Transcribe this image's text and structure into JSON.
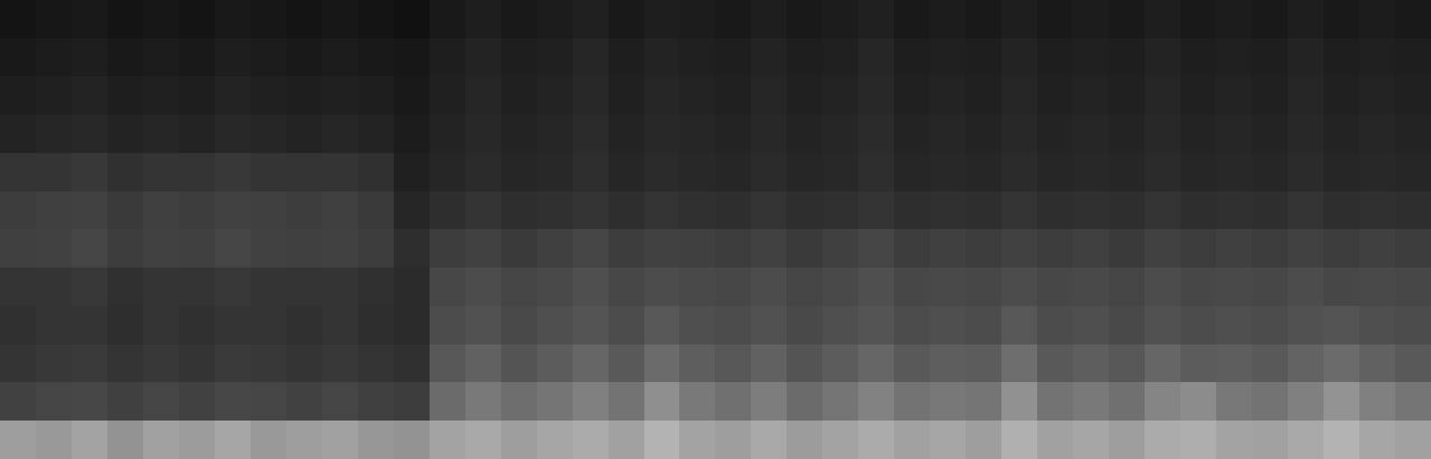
{
  "chart_data": {
    "type": "heatmap",
    "color": "gray",
    "tick_labels": false,
    "color_range": [
      0,
      1
    ],
    "cells": [
      [
        0.08,
        0.09,
        0.1,
        0.08,
        0.09,
        0.08,
        0.1,
        0.09,
        0.08,
        0.09,
        0.08,
        0.07,
        0.1,
        0.12,
        0.1,
        0.11,
        0.13,
        0.1,
        0.12,
        0.11,
        0.1,
        0.12,
        0.1,
        0.11,
        0.13,
        0.1,
        0.11,
        0.1,
        0.12,
        0.1,
        0.11,
        0.1,
        0.12,
        0.1,
        0.11,
        0.1,
        0.12,
        0.1,
        0.11,
        0.1
      ],
      [
        0.1,
        0.11,
        0.12,
        0.1,
        0.11,
        0.1,
        0.12,
        0.11,
        0.1,
        0.11,
        0.1,
        0.09,
        0.12,
        0.14,
        0.12,
        0.13,
        0.15,
        0.12,
        0.14,
        0.13,
        0.12,
        0.14,
        0.12,
        0.13,
        0.15,
        0.12,
        0.13,
        0.12,
        0.14,
        0.12,
        0.13,
        0.12,
        0.14,
        0.12,
        0.13,
        0.12,
        0.14,
        0.12,
        0.13,
        0.12
      ],
      [
        0.12,
        0.13,
        0.14,
        0.12,
        0.13,
        0.12,
        0.14,
        0.13,
        0.12,
        0.13,
        0.12,
        0.1,
        0.13,
        0.15,
        0.13,
        0.14,
        0.16,
        0.13,
        0.15,
        0.14,
        0.13,
        0.15,
        0.13,
        0.14,
        0.16,
        0.13,
        0.14,
        0.13,
        0.15,
        0.13,
        0.14,
        0.13,
        0.15,
        0.13,
        0.14,
        0.13,
        0.15,
        0.13,
        0.14,
        0.13
      ],
      [
        0.14,
        0.15,
        0.16,
        0.14,
        0.15,
        0.14,
        0.16,
        0.15,
        0.14,
        0.15,
        0.14,
        0.11,
        0.14,
        0.16,
        0.14,
        0.15,
        0.17,
        0.14,
        0.16,
        0.15,
        0.14,
        0.16,
        0.14,
        0.15,
        0.17,
        0.14,
        0.15,
        0.14,
        0.16,
        0.14,
        0.15,
        0.14,
        0.16,
        0.14,
        0.15,
        0.14,
        0.16,
        0.14,
        0.15,
        0.14
      ],
      [
        0.2,
        0.21,
        0.22,
        0.19,
        0.21,
        0.2,
        0.22,
        0.21,
        0.2,
        0.21,
        0.19,
        0.13,
        0.15,
        0.17,
        0.15,
        0.16,
        0.18,
        0.15,
        0.17,
        0.16,
        0.15,
        0.17,
        0.15,
        0.16,
        0.18,
        0.15,
        0.16,
        0.15,
        0.17,
        0.15,
        0.16,
        0.15,
        0.17,
        0.15,
        0.16,
        0.15,
        0.17,
        0.15,
        0.16,
        0.15
      ],
      [
        0.24,
        0.25,
        0.26,
        0.23,
        0.25,
        0.24,
        0.26,
        0.25,
        0.24,
        0.25,
        0.23,
        0.15,
        0.18,
        0.2,
        0.18,
        0.19,
        0.21,
        0.18,
        0.2,
        0.19,
        0.18,
        0.2,
        0.18,
        0.19,
        0.21,
        0.18,
        0.19,
        0.18,
        0.2,
        0.18,
        0.19,
        0.18,
        0.2,
        0.18,
        0.19,
        0.18,
        0.2,
        0.18,
        0.19,
        0.18
      ],
      [
        0.25,
        0.26,
        0.27,
        0.24,
        0.26,
        0.25,
        0.27,
        0.26,
        0.25,
        0.26,
        0.24,
        0.18,
        0.24,
        0.26,
        0.23,
        0.25,
        0.27,
        0.24,
        0.26,
        0.25,
        0.24,
        0.26,
        0.23,
        0.25,
        0.27,
        0.24,
        0.25,
        0.24,
        0.26,
        0.24,
        0.25,
        0.23,
        0.26,
        0.24,
        0.25,
        0.24,
        0.26,
        0.24,
        0.25,
        0.24
      ],
      [
        0.2,
        0.21,
        0.22,
        0.19,
        0.21,
        0.2,
        0.22,
        0.21,
        0.2,
        0.21,
        0.19,
        0.17,
        0.28,
        0.3,
        0.27,
        0.29,
        0.31,
        0.28,
        0.3,
        0.29,
        0.28,
        0.3,
        0.27,
        0.29,
        0.31,
        0.28,
        0.29,
        0.28,
        0.3,
        0.28,
        0.29,
        0.27,
        0.3,
        0.28,
        0.29,
        0.28,
        0.3,
        0.28,
        0.29,
        0.28
      ],
      [
        0.19,
        0.2,
        0.21,
        0.18,
        0.2,
        0.19,
        0.21,
        0.2,
        0.19,
        0.2,
        0.18,
        0.17,
        0.3,
        0.32,
        0.29,
        0.31,
        0.33,
        0.3,
        0.34,
        0.31,
        0.3,
        0.32,
        0.29,
        0.31,
        0.33,
        0.3,
        0.31,
        0.3,
        0.34,
        0.3,
        0.31,
        0.29,
        0.32,
        0.3,
        0.31,
        0.3,
        0.32,
        0.33,
        0.31,
        0.3
      ],
      [
        0.21,
        0.22,
        0.23,
        0.2,
        0.22,
        0.21,
        0.23,
        0.22,
        0.21,
        0.22,
        0.2,
        0.19,
        0.34,
        0.38,
        0.33,
        0.36,
        0.4,
        0.35,
        0.42,
        0.37,
        0.34,
        0.38,
        0.33,
        0.36,
        0.4,
        0.35,
        0.37,
        0.36,
        0.43,
        0.35,
        0.37,
        0.34,
        0.4,
        0.36,
        0.37,
        0.35,
        0.39,
        0.42,
        0.38,
        0.35
      ],
      [
        0.26,
        0.27,
        0.28,
        0.25,
        0.27,
        0.26,
        0.28,
        0.27,
        0.26,
        0.27,
        0.25,
        0.24,
        0.42,
        0.48,
        0.43,
        0.46,
        0.5,
        0.45,
        0.56,
        0.48,
        0.44,
        0.49,
        0.42,
        0.46,
        0.51,
        0.45,
        0.47,
        0.46,
        0.57,
        0.45,
        0.48,
        0.44,
        0.52,
        0.55,
        0.47,
        0.45,
        0.5,
        0.58,
        0.5,
        0.46
      ],
      [
        0.62,
        0.6,
        0.64,
        0.58,
        0.63,
        0.61,
        0.65,
        0.6,
        0.62,
        0.63,
        0.59,
        0.58,
        0.64,
        0.66,
        0.62,
        0.65,
        0.67,
        0.63,
        0.7,
        0.64,
        0.62,
        0.66,
        0.61,
        0.64,
        0.67,
        0.63,
        0.65,
        0.62,
        0.69,
        0.63,
        0.65,
        0.62,
        0.67,
        0.68,
        0.64,
        0.63,
        0.66,
        0.7,
        0.65,
        0.63
      ]
    ]
  }
}
